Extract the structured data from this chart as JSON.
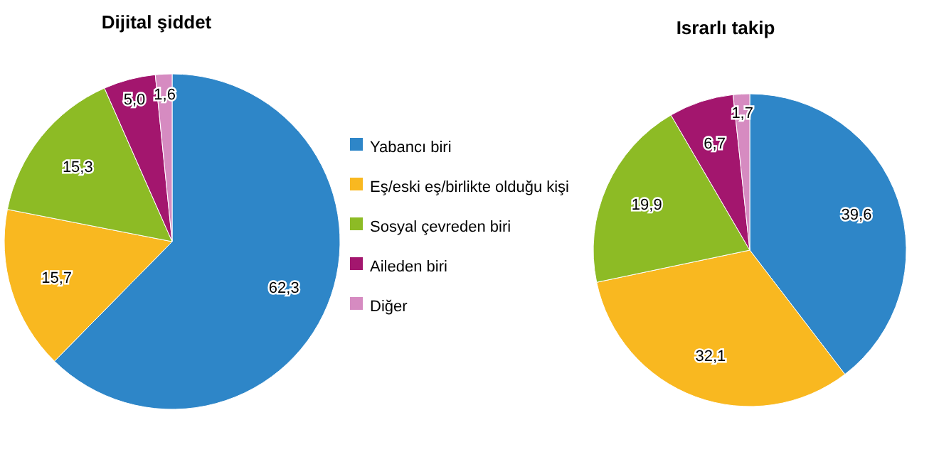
{
  "chart_data": [
    {
      "type": "pie",
      "title": "Dijital şiddet",
      "categories": [
        "Yabancı biri",
        "Eş/eski eş/birlikte olduğu kişi",
        "Sosyal çevreden biri",
        "Aileden biri",
        "Diğer"
      ],
      "values": [
        62.3,
        15.7,
        15.3,
        5.0,
        1.6
      ],
      "value_labels": [
        "62,3",
        "15,7",
        "15,3",
        "5,0",
        "1,6"
      ],
      "colors": [
        "#2e86c8",
        "#f9b820",
        "#8dbb25",
        "#a3166e",
        "#d68bc1"
      ],
      "legend": "right"
    },
    {
      "type": "pie",
      "title": "Israrlı takip",
      "categories": [
        null,
        null,
        null,
        null,
        null
      ],
      "values": [
        39.6,
        32.1,
        19.9,
        6.7,
        1.7
      ],
      "value_labels": [
        "39,6",
        "32,1",
        "19,9",
        "6,7",
        "1,7"
      ],
      "colors": [
        "#2e86c8",
        "#f9b820",
        "#8dbb25",
        "#a3166e",
        "#d68bc1"
      ]
    }
  ]
}
